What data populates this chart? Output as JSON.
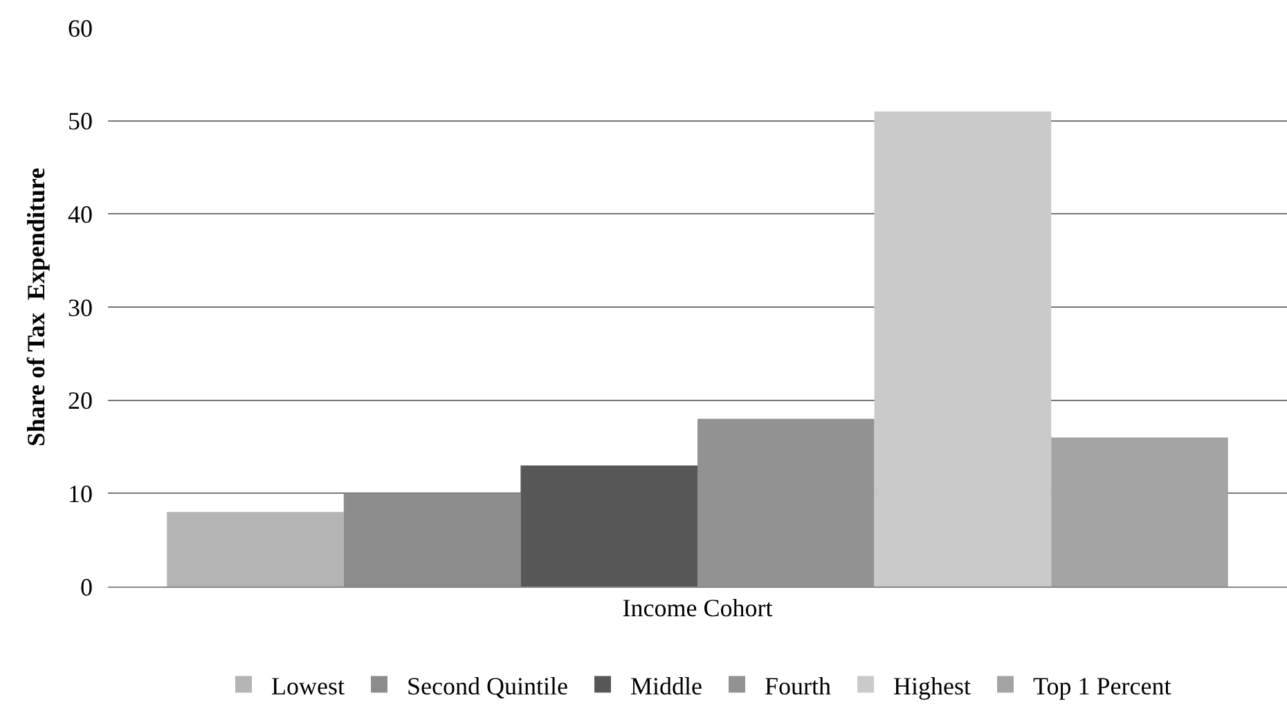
{
  "chart_data": {
    "type": "bar",
    "xlabel": "Income Cohort",
    "ylabel": "Share of Tax  Expenditure",
    "categories": [
      null
    ],
    "series": [
      {
        "name": "Lowest",
        "color": "#b4b4b4",
        "values": [
          8
        ]
      },
      {
        "name": "Second Quintile",
        "color": "#8c8c8c",
        "values": [
          10
        ]
      },
      {
        "name": "Middle",
        "color": "#575757",
        "values": [
          13
        ]
      },
      {
        "name": "Fourth",
        "color": "#929292",
        "values": [
          18
        ]
      },
      {
        "name": "Highest",
        "color": "#cacaca",
        "values": [
          51
        ]
      },
      {
        "name": "Top 1 Percent",
        "color": "#a4a4a4",
        "values": [
          16
        ]
      }
    ],
    "ylim": [
      0,
      60
    ],
    "yticks": [
      0,
      10,
      20,
      30,
      40,
      50,
      60
    ],
    "grid": "y",
    "legend": "bottom"
  }
}
